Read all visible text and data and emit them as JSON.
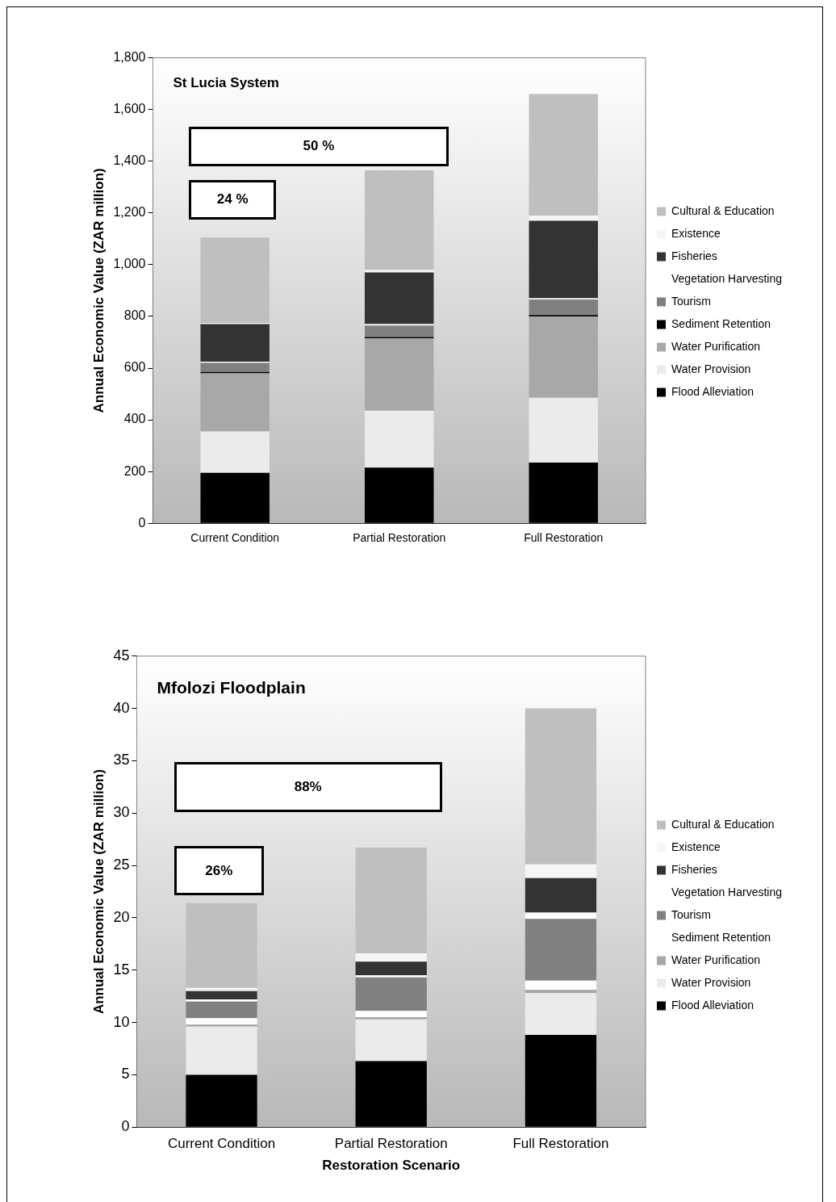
{
  "chart_data": [
    {
      "type": "bar",
      "title": "St Lucia System",
      "ylabel": "Annual Economic Value (ZAR million)",
      "categories": [
        "Current Condition",
        "Partial Restoration",
        "Full Restoration"
      ],
      "stacked": true,
      "ylim": [
        0,
        1800
      ],
      "yticks": [
        {
          "value": 0,
          "label": "0"
        },
        {
          "value": 200,
          "label": "200"
        },
        {
          "value": 400,
          "label": "400"
        },
        {
          "value": 600,
          "label": "600"
        },
        {
          "value": 800,
          "label": "800"
        },
        {
          "value": 1000,
          "label": "1,000"
        },
        {
          "value": 1200,
          "label": "1,200"
        },
        {
          "value": 1400,
          "label": "1,400"
        },
        {
          "value": 1600,
          "label": "1,600"
        },
        {
          "value": 1800,
          "label": "1,800"
        }
      ],
      "grid": false,
      "legend": "right",
      "annotations": [
        "50 %",
        "24 %"
      ],
      "series": [
        {
          "name": "Flood Alleviation",
          "color": "#000000",
          "values": [
            195,
            215,
            235
          ]
        },
        {
          "name": "Water Provision",
          "color": "#ebebeb",
          "values": [
            160,
            220,
            250
          ]
        },
        {
          "name": "Water Purification",
          "color": "#a8a8a8",
          "values": [
            225,
            280,
            315
          ]
        },
        {
          "name": "Sediment Retention",
          "color": "#000000",
          "values": [
            5,
            5,
            5
          ]
        },
        {
          "name": "Tourism",
          "color": "#808080",
          "values": [
            35,
            45,
            60
          ]
        },
        {
          "name": "Vegetation Harvesting",
          "color": "#ffffff",
          "values": [
            5,
            5,
            5
          ]
        },
        {
          "name": "Fisheries",
          "color": "#333333",
          "values": [
            145,
            200,
            300
          ]
        },
        {
          "name": "Existence",
          "color": "#f5f5f5",
          "values": [
            5,
            10,
            20
          ]
        },
        {
          "name": "Cultural & Education",
          "color": "#bfbfbf",
          "values": [
            330,
            385,
            470
          ]
        }
      ]
    },
    {
      "type": "bar",
      "title": "Mfolozi Floodplain",
      "ylabel": "Annual Economic Value (ZAR million)",
      "xlabel": "Restoration Scenario",
      "categories": [
        "Current Condition",
        "Partial Restoration",
        "Full Restoration"
      ],
      "stacked": true,
      "ylim": [
        0,
        45
      ],
      "yticks": [
        0,
        5,
        10,
        15,
        20,
        25,
        30,
        35,
        40,
        45
      ],
      "grid": false,
      "legend": "right",
      "annotations": [
        "88%",
        "26%"
      ],
      "series": [
        {
          "name": "Flood Alleviation",
          "color": "#000000",
          "values": [
            5.0,
            6.3,
            8.8
          ]
        },
        {
          "name": "Water Provision",
          "color": "#ebebeb",
          "values": [
            4.6,
            4.0,
            4.0
          ]
        },
        {
          "name": "Water Purification",
          "color": "#a8a8a8",
          "values": [
            0.2,
            0.2,
            0.3
          ]
        },
        {
          "name": "Sediment Retention",
          "color": "#ffffff",
          "values": [
            0.6,
            0.6,
            0.9
          ]
        },
        {
          "name": "Tourism",
          "color": "#808080",
          "values": [
            1.6,
            3.2,
            5.9
          ]
        },
        {
          "name": "Vegetation Harvesting",
          "color": "#ffffff",
          "values": [
            0.2,
            0.2,
            0.6
          ]
        },
        {
          "name": "Fisheries",
          "color": "#333333",
          "values": [
            0.8,
            1.3,
            3.3
          ]
        },
        {
          "name": "Existence",
          "color": "#f5f5f5",
          "values": [
            0.3,
            0.8,
            1.3
          ]
        },
        {
          "name": "Cultural & Education",
          "color": "#bfbfbf",
          "values": [
            8.1,
            10.1,
            14.9
          ]
        }
      ]
    }
  ]
}
